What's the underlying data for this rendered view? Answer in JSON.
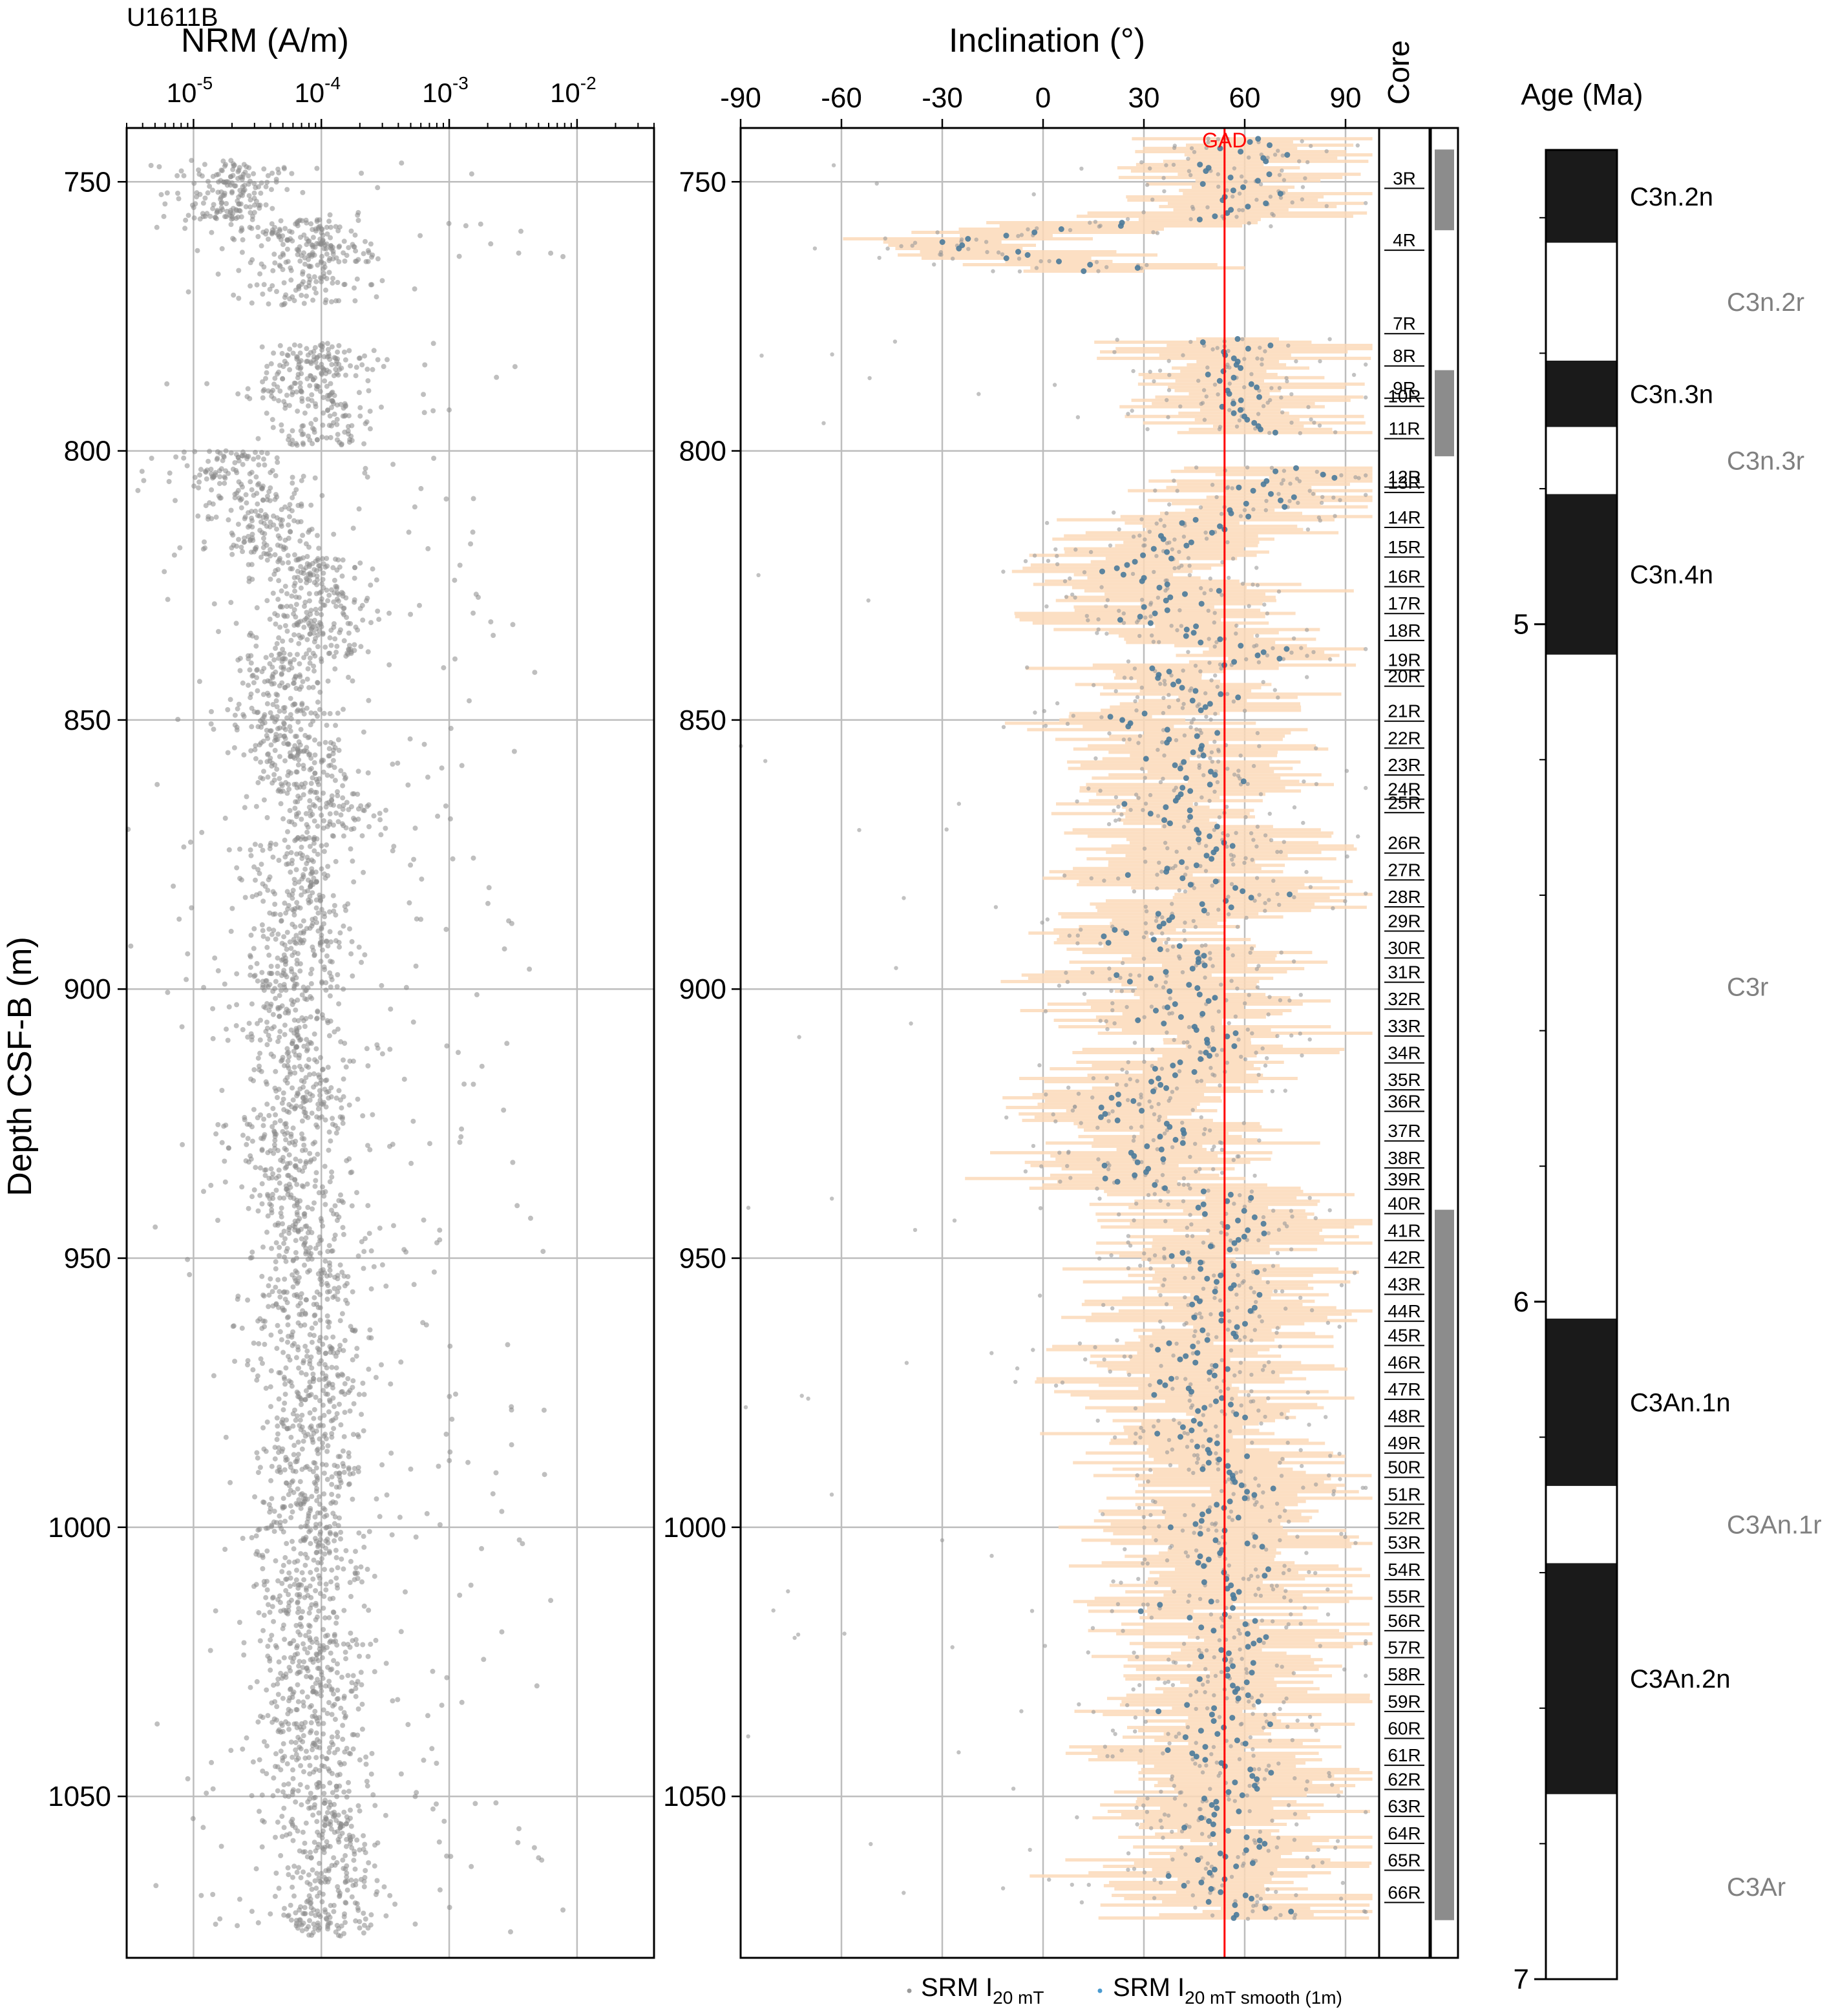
{
  "chart_data": [
    {
      "type": "scatter",
      "site": "U1611B",
      "title": "NRM (A/m)",
      "xlabel": "NRM (A/m)",
      "ylabel": "Depth CSF-B (m)",
      "xscale": "log",
      "xlim": [
        3e-06,
        0.04
      ],
      "ylim": [
        1080,
        740
      ],
      "xticks": [
        {
          "value": 1e-05,
          "base": "10",
          "exp": "-5"
        },
        {
          "value": 0.0001,
          "base": "10",
          "exp": "-4"
        },
        {
          "value": 0.001,
          "base": "10",
          "exp": "-3"
        },
        {
          "value": 0.01,
          "base": "10",
          "exp": "-2"
        }
      ],
      "yticks": [
        "750",
        "800",
        "850",
        "900",
        "950",
        "1000",
        "1050"
      ],
      "grid": true,
      "point_color": "#8a8a8a",
      "depth_clusters": [
        [
          746,
          2.2e-05
        ],
        [
          752,
          1.8e-05
        ],
        [
          757,
          6e-05
        ],
        [
          761,
          0.00011
        ],
        [
          765,
          7e-05
        ],
        [
          780,
          9e-05
        ],
        [
          785,
          7e-05
        ],
        [
          791,
          0.0001
        ],
        [
          800,
          2e-05
        ],
        [
          806,
          3e-05
        ],
        [
          813,
          4e-05
        ],
        [
          820,
          8e-05
        ],
        [
          826,
          9e-05
        ],
        [
          832,
          8e-05
        ],
        [
          838,
          6e-05
        ],
        [
          845,
          5e-05
        ],
        [
          852,
          6e-05
        ],
        [
          858,
          8e-05
        ],
        [
          865,
          9e-05
        ],
        [
          872,
          6e-05
        ],
        [
          880,
          7e-05
        ],
        [
          888,
          7e-05
        ],
        [
          895,
          6e-05
        ],
        [
          902,
          6e-05
        ],
        [
          910,
          7e-05
        ],
        [
          918,
          8e-05
        ],
        [
          925,
          5e-05
        ],
        [
          932,
          6e-05
        ],
        [
          940,
          7e-05
        ],
        [
          948,
          8e-05
        ],
        [
          956,
          7e-05
        ],
        [
          964,
          8e-05
        ],
        [
          972,
          9e-05
        ],
        [
          980,
          8e-05
        ],
        [
          988,
          9e-05
        ],
        [
          995,
          7e-05
        ],
        [
          1002,
          9e-05
        ],
        [
          1010,
          8e-05
        ],
        [
          1018,
          9e-05
        ],
        [
          1025,
          9e-05
        ],
        [
          1032,
          8e-05
        ],
        [
          1040,
          7e-05
        ],
        [
          1048,
          9e-05
        ],
        [
          1055,
          0.00012
        ],
        [
          1062,
          0.00011
        ],
        [
          1070,
          0.00011
        ]
      ]
    },
    {
      "type": "scatter",
      "title": "Inclination (°)",
      "xlabel": "Inclination (°)",
      "xlim": [
        -90,
        100
      ],
      "ylim": [
        1080,
        740
      ],
      "xticks": [
        "-90",
        "-60",
        "-30",
        "0",
        "30",
        "60",
        "90"
      ],
      "grid": true,
      "gad": {
        "label": "GAD",
        "value": 54,
        "color": "#ff0000"
      },
      "series": [
        {
          "name": "SRM I",
          "sub": "20 mT",
          "color": "#9a9a9a"
        },
        {
          "name": "SRM I",
          "sub": "20 mT smooth (1m)",
          "color": "#4a7a9a"
        }
      ],
      "envelope_color": "#fcd9b8",
      "smooth_profile": [
        [
          744,
          62
        ],
        [
          748,
          55
        ],
        [
          752,
          60
        ],
        [
          756,
          62
        ],
        [
          760,
          -15
        ],
        [
          763,
          -20
        ],
        [
          766,
          20
        ],
        [
          780,
          55
        ],
        [
          785,
          57
        ],
        [
          790,
          58
        ],
        [
          795,
          58
        ],
        [
          804,
          70
        ],
        [
          808,
          68
        ],
        [
          812,
          55
        ],
        [
          818,
          40
        ],
        [
          822,
          20
        ],
        [
          826,
          45
        ],
        [
          830,
          25
        ],
        [
          834,
          50
        ],
        [
          838,
          62
        ],
        [
          842,
          35
        ],
        [
          846,
          55
        ],
        [
          850,
          25
        ],
        [
          854,
          50
        ],
        [
          858,
          35
        ],
        [
          862,
          50
        ],
        [
          866,
          30
        ],
        [
          870,
          45
        ],
        [
          874,
          55
        ],
        [
          878,
          35
        ],
        [
          882,
          60
        ],
        [
          886,
          40
        ],
        [
          890,
          20
        ],
        [
          894,
          45
        ],
        [
          898,
          30
        ],
        [
          902,
          50
        ],
        [
          906,
          35
        ],
        [
          910,
          55
        ],
        [
          914,
          40
        ],
        [
          918,
          35
        ],
        [
          922,
          20
        ],
        [
          926,
          40
        ],
        [
          930,
          35
        ],
        [
          934,
          20
        ],
        [
          938,
          45
        ],
        [
          942,
          55
        ],
        [
          946,
          60
        ],
        [
          950,
          45
        ],
        [
          954,
          55
        ],
        [
          958,
          50
        ],
        [
          962,
          55
        ],
        [
          966,
          45
        ],
        [
          970,
          50
        ],
        [
          974,
          40
        ],
        [
          978,
          55
        ],
        [
          982,
          45
        ],
        [
          986,
          55
        ],
        [
          990,
          50
        ],
        [
          994,
          60
        ],
        [
          998,
          45
        ],
        [
          1002,
          55
        ],
        [
          1006,
          50
        ],
        [
          1010,
          60
        ],
        [
          1014,
          45
        ],
        [
          1018,
          55
        ],
        [
          1022,
          60
        ],
        [
          1026,
          55
        ],
        [
          1030,
          60
        ],
        [
          1034,
          50
        ],
        [
          1038,
          55
        ],
        [
          1042,
          45
        ],
        [
          1046,
          60
        ],
        [
          1050,
          55
        ],
        [
          1054,
          50
        ],
        [
          1058,
          60
        ],
        [
          1062,
          55
        ],
        [
          1066,
          45
        ],
        [
          1070,
          60
        ]
      ]
    },
    {
      "type": "table",
      "title": "Core",
      "cores": [
        {
          "label": "3R",
          "depth": 750.5
        },
        {
          "label": "4R",
          "depth": 762
        },
        {
          "label": "7R",
          "depth": 777.5
        },
        {
          "label": "8R",
          "depth": 783.5
        },
        {
          "label": "9R",
          "depth": 789.5
        },
        {
          "label": "10R",
          "depth": 791
        },
        {
          "label": "11R",
          "depth": 797
        },
        {
          "label": "12R",
          "depth": 806
        },
        {
          "label": "13R",
          "depth": 807
        },
        {
          "label": "14R",
          "depth": 813.5
        },
        {
          "label": "15R",
          "depth": 819
        },
        {
          "label": "16R",
          "depth": 824.5
        },
        {
          "label": "17R",
          "depth": 829.5
        },
        {
          "label": "18R",
          "depth": 834.5
        },
        {
          "label": "19R",
          "depth": 840
        },
        {
          "label": "20R",
          "depth": 843
        },
        {
          "label": "21R",
          "depth": 849.5
        },
        {
          "label": "22R",
          "depth": 854.5
        },
        {
          "label": "23R",
          "depth": 859.5
        },
        {
          "label": "24R",
          "depth": 864
        },
        {
          "label": "25R",
          "depth": 866.5
        },
        {
          "label": "26R",
          "depth": 874
        },
        {
          "label": "27R",
          "depth": 879
        },
        {
          "label": "28R",
          "depth": 884
        },
        {
          "label": "29R",
          "depth": 888.5
        },
        {
          "label": "30R",
          "depth": 893.5
        },
        {
          "label": "31R",
          "depth": 898
        },
        {
          "label": "32R",
          "depth": 903
        },
        {
          "label": "33R",
          "depth": 908
        },
        {
          "label": "34R",
          "depth": 913
        },
        {
          "label": "35R",
          "depth": 918
        },
        {
          "label": "36R",
          "depth": 922
        },
        {
          "label": "37R",
          "depth": 927.5
        },
        {
          "label": "38R",
          "depth": 932.5
        },
        {
          "label": "39R",
          "depth": 936.5
        },
        {
          "label": "40R",
          "depth": 941
        },
        {
          "label": "41R",
          "depth": 946
        },
        {
          "label": "42R",
          "depth": 951
        },
        {
          "label": "43R",
          "depth": 956
        },
        {
          "label": "44R",
          "depth": 961
        },
        {
          "label": "45R",
          "depth": 965.5
        },
        {
          "label": "46R",
          "depth": 970.5
        },
        {
          "label": "47R",
          "depth": 975.5
        },
        {
          "label": "48R",
          "depth": 980.5
        },
        {
          "label": "49R",
          "depth": 985.5
        },
        {
          "label": "50R",
          "depth": 990
        },
        {
          "label": "51R",
          "depth": 995
        },
        {
          "label": "52R",
          "depth": 999.5
        },
        {
          "label": "53R",
          "depth": 1004
        },
        {
          "label": "54R",
          "depth": 1009
        },
        {
          "label": "55R",
          "depth": 1014
        },
        {
          "label": "56R",
          "depth": 1018.5
        },
        {
          "label": "57R",
          "depth": 1023.5
        },
        {
          "label": "58R",
          "depth": 1028.5
        },
        {
          "label": "59R",
          "depth": 1033.5
        },
        {
          "label": "60R",
          "depth": 1038.5
        },
        {
          "label": "61R",
          "depth": 1043.5
        },
        {
          "label": "62R",
          "depth": 1048
        },
        {
          "label": "63R",
          "depth": 1053
        },
        {
          "label": "64R",
          "depth": 1058
        },
        {
          "label": "65R",
          "depth": 1063
        },
        {
          "label": "66R",
          "depth": 1069
        }
      ],
      "polarity_bars": [
        {
          "top": 744,
          "bottom": 759
        },
        {
          "top": 785,
          "bottom": 801
        },
        {
          "top": 941,
          "bottom": 1073
        }
      ],
      "bar_color": "#8c8c8c"
    },
    {
      "type": "bar",
      "title": "Age (Ma)",
      "ylim": [
        4.3,
        7.0
      ],
      "yticks": [
        "5",
        "6",
        "7"
      ],
      "chrons": [
        {
          "label": "C3n.2n",
          "top": 4.3,
          "bottom": 4.437,
          "color": "#1a1a1a",
          "label_color": "#000000"
        },
        {
          "label": "C3n.2r",
          "top": 4.437,
          "bottom": 4.611,
          "color": "#ffffff",
          "label_color": "#808080"
        },
        {
          "label": "C3n.3n",
          "top": 4.611,
          "bottom": 4.709,
          "color": "#1a1a1a",
          "label_color": "#000000"
        },
        {
          "label": "C3n.3r",
          "top": 4.709,
          "bottom": 4.808,
          "color": "#ffffff",
          "label_color": "#808080"
        },
        {
          "label": "C3n.4n",
          "top": 4.808,
          "bottom": 5.045,
          "color": "#1a1a1a",
          "label_color": "#000000"
        },
        {
          "label": "C3r",
          "top": 5.045,
          "bottom": 6.025,
          "color": "#ffffff",
          "label_color": "#808080"
        },
        {
          "label": "C3An.1n",
          "top": 6.025,
          "bottom": 6.272,
          "color": "#1a1a1a",
          "label_color": "#000000"
        },
        {
          "label": "C3An.1r",
          "top": 6.272,
          "bottom": 6.386,
          "color": "#ffffff",
          "label_color": "#808080"
        },
        {
          "label": "C3An.2n",
          "top": 6.386,
          "bottom": 6.727,
          "color": "#1a1a1a",
          "label_color": "#000000"
        },
        {
          "label": "C3Ar",
          "top": 6.727,
          "bottom": 7.0,
          "color": "#ffffff",
          "label_color": "#808080"
        }
      ]
    }
  ]
}
